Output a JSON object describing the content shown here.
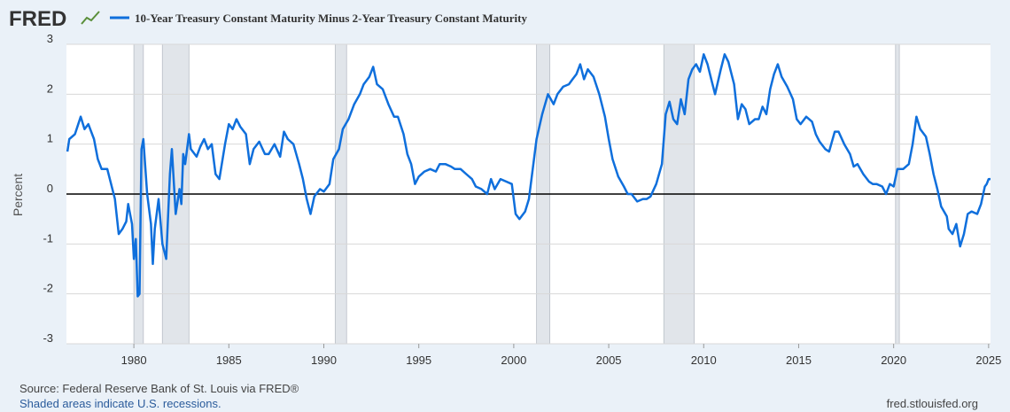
{
  "chart_data": {
    "type": "line",
    "logo": "FRED",
    "ylabel": "Percent",
    "source": "Source: Federal Reserve Bank of St. Louis via FRED®",
    "note": "Shaded areas indicate U.S. recessions.",
    "url": "fred.stlouisfed.org",
    "xlim": [
      1976.45,
      2025.1
    ],
    "ylim": [
      -3,
      3
    ],
    "xticks": [
      1980,
      1985,
      1990,
      1995,
      2000,
      2005,
      2010,
      2015,
      2020,
      2025
    ],
    "yticks": [
      3,
      2,
      1,
      0,
      -1,
      -2,
      -3
    ],
    "grid": true,
    "reference_line": 0,
    "recessions": [
      [
        1980.0,
        1980.5
      ],
      [
        1981.5,
        1982.9
      ],
      [
        1990.6,
        1991.2
      ],
      [
        2001.2,
        2001.9
      ],
      [
        2007.9,
        2009.5
      ],
      [
        2020.1,
        2020.3
      ]
    ],
    "x": [
      1976.5,
      1976.6,
      1976.9,
      1977.2,
      1977.4,
      1977.6,
      1977.9,
      1978.1,
      1978.3,
      1978.6,
      1978.8,
      1979.0,
      1979.2,
      1979.4,
      1979.6,
      1979.7,
      1979.9,
      1980.0,
      1980.1,
      1980.2,
      1980.3,
      1980.4,
      1980.5,
      1980.7,
      1980.9,
      1981.0,
      1981.1,
      1981.3,
      1981.5,
      1981.7,
      1981.9,
      1982.0,
      1982.2,
      1982.4,
      1982.5,
      1982.6,
      1982.7,
      1982.9,
      1983.0,
      1983.3,
      1983.5,
      1983.7,
      1983.9,
      1984.1,
      1984.3,
      1984.5,
      1984.8,
      1985.0,
      1985.2,
      1985.4,
      1985.6,
      1985.9,
      1986.1,
      1986.3,
      1986.6,
      1986.9,
      1987.1,
      1987.4,
      1987.7,
      1987.9,
      1988.1,
      1988.4,
      1988.7,
      1988.9,
      1989.1,
      1989.3,
      1989.5,
      1989.8,
      1990.0,
      1990.3,
      1990.5,
      1990.8,
      1991.0,
      1991.3,
      1991.6,
      1991.9,
      1992.1,
      1992.4,
      1992.6,
      1992.8,
      1993.1,
      1993.4,
      1993.7,
      1993.9,
      1994.2,
      1994.4,
      1994.6,
      1994.8,
      1995.0,
      1995.3,
      1995.6,
      1995.9,
      1996.1,
      1996.4,
      1996.7,
      1996.9,
      1997.2,
      1997.5,
      1997.8,
      1998.0,
      1998.3,
      1998.6,
      1998.8,
      1999.0,
      1999.3,
      1999.6,
      1999.9,
      2000.1,
      2000.3,
      2000.6,
      2000.8,
      2001.0,
      2001.2,
      2001.5,
      2001.8,
      2002.1,
      2002.3,
      2002.6,
      2002.9,
      2003.1,
      2003.3,
      2003.5,
      2003.7,
      2003.9,
      2004.2,
      2004.5,
      2004.8,
      2005.0,
      2005.2,
      2005.5,
      2005.8,
      2006.0,
      2006.2,
      2006.5,
      2006.8,
      2007.0,
      2007.2,
      2007.5,
      2007.8,
      2008.0,
      2008.2,
      2008.4,
      2008.6,
      2008.8,
      2009.0,
      2009.2,
      2009.4,
      2009.6,
      2009.8,
      2010.0,
      2010.2,
      2010.4,
      2010.6,
      2010.9,
      2011.1,
      2011.3,
      2011.6,
      2011.8,
      2012.0,
      2012.2,
      2012.4,
      2012.7,
      2012.9,
      2013.1,
      2013.3,
      2013.5,
      2013.7,
      2013.9,
      2014.1,
      2014.4,
      2014.7,
      2014.9,
      2015.1,
      2015.4,
      2015.7,
      2015.9,
      2016.1,
      2016.4,
      2016.6,
      2016.9,
      2017.1,
      2017.4,
      2017.7,
      2017.9,
      2018.1,
      2018.4,
      2018.7,
      2018.9,
      2019.1,
      2019.4,
      2019.6,
      2019.8,
      2020.0,
      2020.2,
      2020.5,
      2020.8,
      2021.0,
      2021.2,
      2021.4,
      2021.7,
      2021.9,
      2022.1,
      2022.3,
      2022.5,
      2022.8,
      2022.9,
      2023.1,
      2023.3,
      2023.5,
      2023.7,
      2023.9,
      2024.1,
      2024.4,
      2024.6,
      2024.8,
      2024.9,
      2025.0,
      2025.1
    ],
    "series": [
      {
        "name": "10-Year Treasury Constant Maturity Minus 2-Year Treasury Constant Maturity",
        "color": "#0f6fdc",
        "values": [
          0.85,
          1.1,
          1.2,
          1.55,
          1.3,
          1.4,
          1.1,
          0.7,
          0.5,
          0.5,
          0.2,
          -0.1,
          -0.8,
          -0.7,
          -0.55,
          -0.2,
          -0.6,
          -1.3,
          -0.9,
          -2.05,
          -2.0,
          0.9,
          1.1,
          0.0,
          -0.6,
          -1.4,
          -0.7,
          -0.1,
          -1.0,
          -1.3,
          0.4,
          0.9,
          -0.4,
          0.1,
          -0.2,
          0.8,
          0.6,
          1.2,
          0.9,
          0.75,
          0.95,
          1.1,
          0.9,
          1.0,
          0.4,
          0.3,
          1.0,
          1.4,
          1.3,
          1.5,
          1.35,
          1.2,
          0.6,
          0.9,
          1.05,
          0.8,
          0.8,
          1.0,
          0.75,
          1.25,
          1.1,
          1.0,
          0.6,
          0.3,
          -0.1,
          -0.4,
          -0.05,
          0.1,
          0.05,
          0.2,
          0.7,
          0.9,
          1.3,
          1.5,
          1.8,
          2.0,
          2.2,
          2.35,
          2.55,
          2.2,
          2.1,
          1.8,
          1.55,
          1.55,
          1.2,
          0.8,
          0.6,
          0.2,
          0.35,
          0.45,
          0.5,
          0.45,
          0.6,
          0.6,
          0.55,
          0.5,
          0.5,
          0.4,
          0.3,
          0.15,
          0.1,
          0.0,
          0.3,
          0.1,
          0.3,
          0.25,
          0.2,
          -0.4,
          -0.5,
          -0.35,
          -0.1,
          0.5,
          1.1,
          1.6,
          2.0,
          1.8,
          2.0,
          2.15,
          2.2,
          2.3,
          2.4,
          2.6,
          2.3,
          2.5,
          2.35,
          2.0,
          1.55,
          1.1,
          0.7,
          0.35,
          0.15,
          0.0,
          0.0,
          -0.15,
          -0.1,
          -0.1,
          -0.05,
          0.2,
          0.6,
          1.6,
          1.85,
          1.5,
          1.4,
          1.9,
          1.6,
          2.3,
          2.5,
          2.6,
          2.45,
          2.8,
          2.6,
          2.3,
          2.0,
          2.5,
          2.8,
          2.65,
          2.2,
          1.5,
          1.8,
          1.7,
          1.4,
          1.5,
          1.5,
          1.75,
          1.6,
          2.1,
          2.4,
          2.6,
          2.35,
          2.15,
          1.9,
          1.5,
          1.4,
          1.55,
          1.45,
          1.2,
          1.05,
          0.9,
          0.85,
          1.25,
          1.25,
          1.0,
          0.8,
          0.55,
          0.6,
          0.4,
          0.25,
          0.2,
          0.2,
          0.15,
          0.0,
          0.2,
          0.15,
          0.5,
          0.5,
          0.6,
          1.0,
          1.55,
          1.3,
          1.15,
          0.8,
          0.4,
          0.1,
          -0.25,
          -0.45,
          -0.7,
          -0.8,
          -0.6,
          -1.05,
          -0.8,
          -0.4,
          -0.35,
          -0.4,
          -0.2,
          0.15,
          0.2,
          0.3,
          0.3
        ]
      }
    ]
  }
}
